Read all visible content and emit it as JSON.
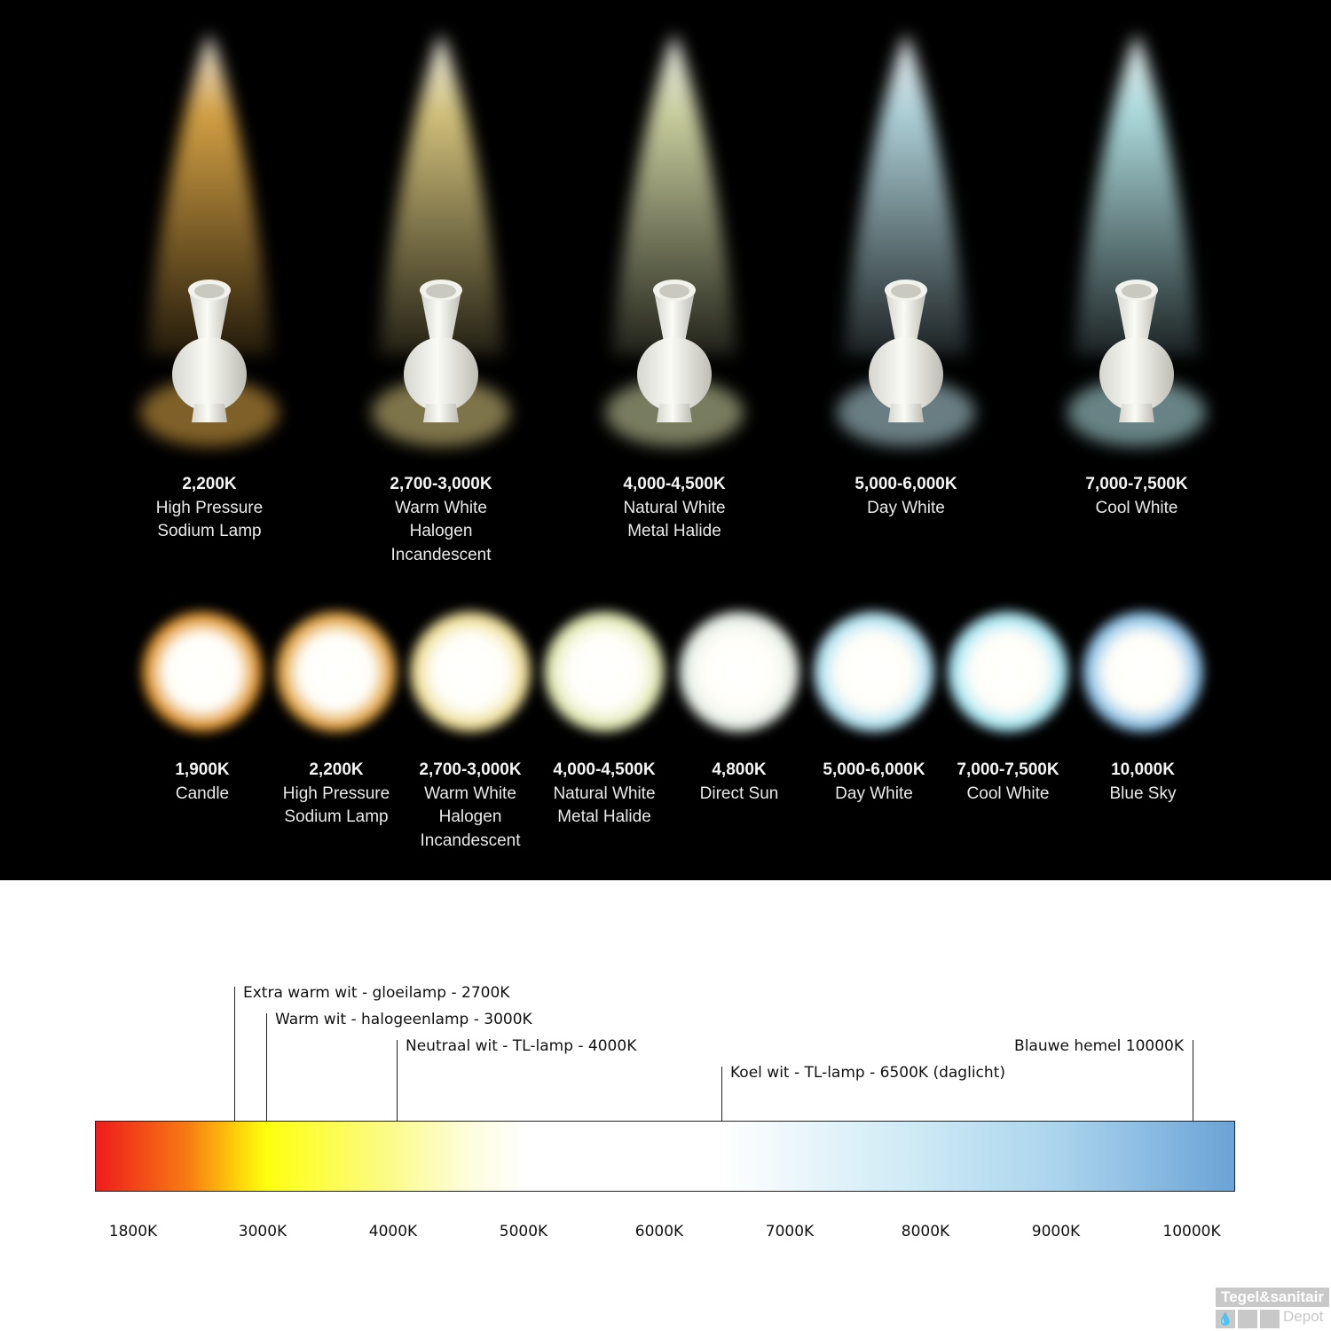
{
  "lamps": [
    {
      "kelvin": "2,200K",
      "lines": [
        "High Pressure",
        "Sodium Lamp"
      ],
      "color": "#e8b04a"
    },
    {
      "kelvin": "2,700-3,000K",
      "lines": [
        "Warm White",
        "Halogen",
        "Incandescent"
      ],
      "color": "#e6d487"
    },
    {
      "kelvin": "4,000-4,500K",
      "lines": [
        "Natural White",
        "Metal Halide"
      ],
      "color": "#dde3ae"
    },
    {
      "kelvin": "5,000-6,000K",
      "lines": [
        "Day White"
      ],
      "color": "#bfe5ee"
    },
    {
      "kelvin": "7,000-7,500K",
      "lines": [
        "Cool White"
      ],
      "color": "#bdeff2"
    }
  ],
  "orbs": [
    {
      "kelvin": "1,900K",
      "lines": [
        "Candle"
      ],
      "color": "#e39a35"
    },
    {
      "kelvin": "2,200K",
      "lines": [
        "High Pressure",
        "Sodium Lamp"
      ],
      "color": "#e6a847"
    },
    {
      "kelvin": "2,700-3,000K",
      "lines": [
        "Warm White",
        "Halogen",
        "Incandescent"
      ],
      "color": "#f0e09a"
    },
    {
      "kelvin": "4,000-4,500K",
      "lines": [
        "Natural White",
        "Metal Halide"
      ],
      "color": "#e4ebb5"
    },
    {
      "kelvin": "4,800K",
      "lines": [
        "Direct Sun"
      ],
      "color": "#e8efe8"
    },
    {
      "kelvin": "5,000-6,000K",
      "lines": [
        "Day White"
      ],
      "color": "#b6e5f4"
    },
    {
      "kelvin": "7,000-7,500K",
      "lines": [
        "Cool White"
      ],
      "color": "#ade9f6"
    },
    {
      "kelvin": "10,000K",
      "lines": [
        "Blue Sky"
      ],
      "color": "#94c8ec"
    }
  ],
  "scale": {
    "annotations": [
      {
        "text": "Extra warm wit - gloeilamp - 2700K",
        "kelvin": 2700
      },
      {
        "text": "Warm wit - halogeenlamp - 3000K",
        "kelvin": 3000
      },
      {
        "text": "Neutraal wit - TL-lamp - 4000K",
        "kelvin": 4000
      },
      {
        "text": "Koel wit - TL-lamp - 6500K (daglicht)",
        "kelvin": 6500
      },
      {
        "text": "Blauwe hemel 10000K",
        "kelvin": 10000
      }
    ],
    "ticks": [
      "1800K",
      "3000K",
      "4000K",
      "5000K",
      "6000K",
      "7000K",
      "8000K",
      "9000K",
      "10000K"
    ],
    "gradient_colors": [
      "#ee1c1c",
      "#f77a12",
      "#ffff10",
      "#ffffff",
      "#a9d3ed",
      "#6aa3d6"
    ]
  },
  "watermark": {
    "brand": "Tegel&sanitair",
    "sub": "Depot"
  }
}
